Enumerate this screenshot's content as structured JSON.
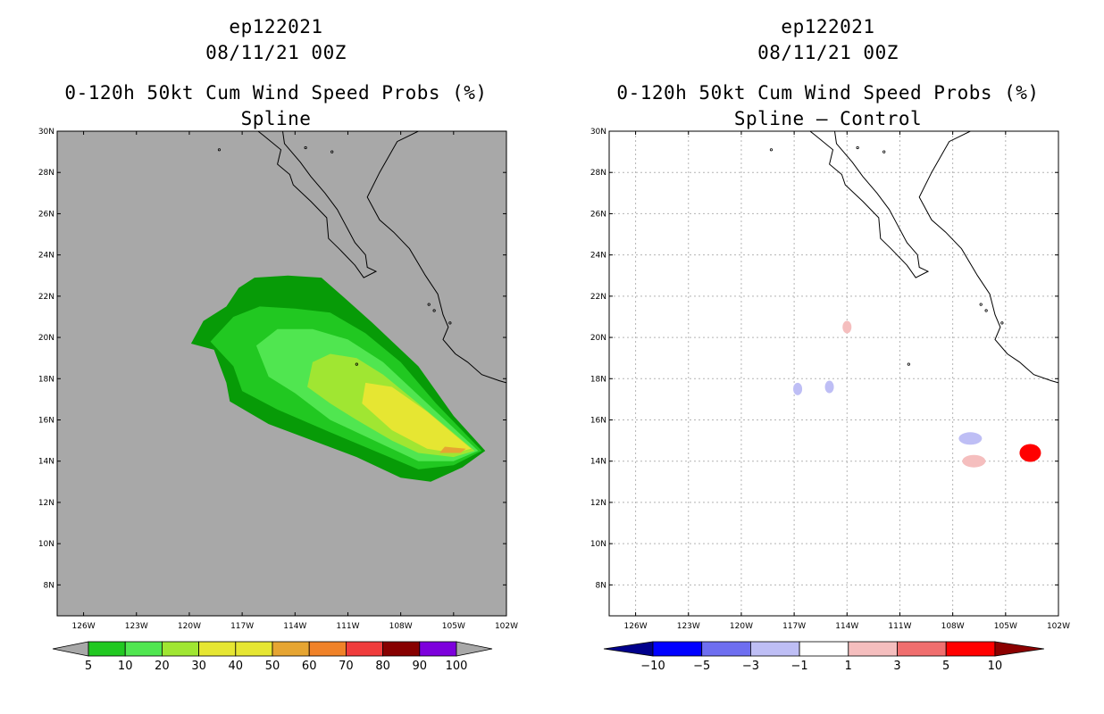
{
  "left_panel": {
    "title_lines": [
      "ep122021",
      "08/11/21 00Z"
    ],
    "subtitle_lines": [
      "0-120h 50kt Cum Wind Speed Probs (%)",
      "Spline"
    ],
    "colors": {
      "background": "#a8a8a8"
    },
    "colorbar": {
      "labels": [
        "5",
        "10",
        "20",
        "30",
        "40",
        "50",
        "60",
        "70",
        "80",
        "90",
        "100"
      ],
      "colors": [
        "#079b07",
        "#21c821",
        "#50e650",
        "#a0e632",
        "#e6e632",
        "#e6e632",
        "#e6a532",
        "#f08228",
        "#f03c3c",
        "#870000",
        "#7d00dc"
      ]
    }
  },
  "right_panel": {
    "title_lines": [
      "ep122021",
      "08/11/21 00Z"
    ],
    "subtitle_lines": [
      "0-120h 50kt Cum Wind Speed Probs (%)",
      "Spline – Control"
    ],
    "colors": {
      "background": "#ffffff"
    },
    "colorbar": {
      "labels": [
        "−10",
        "−5",
        "−3",
        "−1",
        "1",
        "3",
        "5",
        "10"
      ],
      "colors": [
        "#00008c",
        "#0000ff",
        "#6e6ef0",
        "#bebef5",
        "#ffffff",
        "#f5bebe",
        "#f06e6e",
        "#ff0000",
        "#8c0000"
      ]
    }
  },
  "chart_data": [
    {
      "type": "heatmap",
      "title": "ep122021 08/11/21 00Z",
      "subtitle": "0-120h 50kt Cum Wind Speed Probs (%) Spline",
      "lon_range": [
        -127.5,
        -102
      ],
      "lat_range": [
        6.5,
        30
      ],
      "x_ticks": [
        "126W",
        "123W",
        "120W",
        "117W",
        "114W",
        "111W",
        "108W",
        "105W",
        "102W"
      ],
      "y_ticks": [
        "8N",
        "10N",
        "12N",
        "14N",
        "16N",
        "18N",
        "20N",
        "22N",
        "24N",
        "26N",
        "28N",
        "30N"
      ],
      "grid": false,
      "levels": [
        5,
        10,
        20,
        30,
        40,
        50,
        60,
        70,
        80,
        90,
        100
      ],
      "max_value_location": {
        "lon": -104.0,
        "lat": 14.4
      },
      "contours": [
        {
          "level": 5,
          "polygon": [
            [
              -119.9,
              19.7
            ],
            [
              -119.2,
              20.8
            ],
            [
              -117.9,
              21.5
            ],
            [
              -117.2,
              22.4
            ],
            [
              -116.3,
              22.9
            ],
            [
              -114.4,
              23.0
            ],
            [
              -112.5,
              22.9
            ],
            [
              -111.3,
              22.0
            ],
            [
              -109.6,
              20.7
            ],
            [
              -107.0,
              18.6
            ],
            [
              -105.0,
              16.2
            ],
            [
              -103.2,
              14.5
            ],
            [
              -104.5,
              13.7
            ],
            [
              -106.3,
              13.0
            ],
            [
              -108.0,
              13.2
            ],
            [
              -110.5,
              14.2
            ],
            [
              -113.0,
              15.0
            ],
            [
              -115.5,
              15.8
            ],
            [
              -117.7,
              16.9
            ],
            [
              -117.9,
              17.8
            ],
            [
              -118.6,
              19.4
            ]
          ]
        },
        {
          "level": 10,
          "polygon": [
            [
              -118.8,
              19.8
            ],
            [
              -117.5,
              21.0
            ],
            [
              -116.0,
              21.5
            ],
            [
              -114.0,
              21.4
            ],
            [
              -112.0,
              21.2
            ],
            [
              -110.0,
              20.2
            ],
            [
              -108.0,
              18.8
            ],
            [
              -106.0,
              16.8
            ],
            [
              -103.4,
              14.5
            ],
            [
              -105.0,
              13.8
            ],
            [
              -107.0,
              13.6
            ],
            [
              -109.5,
              14.5
            ],
            [
              -112.0,
              15.4
            ],
            [
              -115.0,
              16.5
            ],
            [
              -117.0,
              17.4
            ],
            [
              -117.5,
              18.6
            ]
          ]
        },
        {
          "level": 20,
          "polygon": [
            [
              -116.2,
              19.6
            ],
            [
              -115.0,
              20.4
            ],
            [
              -113.0,
              20.4
            ],
            [
              -111.0,
              19.9
            ],
            [
              -109.0,
              18.8
            ],
            [
              -107.0,
              17.2
            ],
            [
              -103.6,
              14.5
            ],
            [
              -105.0,
              14.0
            ],
            [
              -107.0,
              14.0
            ],
            [
              -109.0,
              14.8
            ],
            [
              -112.0,
              16.0
            ],
            [
              -114.0,
              17.3
            ],
            [
              -115.5,
              18.1
            ]
          ]
        },
        {
          "level": 30,
          "polygon": [
            [
              -113.0,
              18.8
            ],
            [
              -112.0,
              19.2
            ],
            [
              -110.5,
              19.0
            ],
            [
              -109.0,
              18.2
            ],
            [
              -107.3,
              17.0
            ],
            [
              -103.8,
              14.5
            ],
            [
              -105.0,
              14.2
            ],
            [
              -107.0,
              14.4
            ],
            [
              -108.5,
              15.0
            ],
            [
              -110.5,
              16.0
            ],
            [
              -112.0,
              16.8
            ],
            [
              -113.3,
              17.6
            ]
          ]
        },
        {
          "level": 40,
          "polygon": [
            [
              -110.0,
              17.8
            ],
            [
              -108.5,
              17.6
            ],
            [
              -106.5,
              16.4
            ],
            [
              -104.0,
              14.6
            ],
            [
              -105.0,
              14.4
            ],
            [
              -106.5,
              14.6
            ],
            [
              -108.5,
              15.5
            ],
            [
              -110.2,
              16.8
            ]
          ]
        },
        {
          "level": 50,
          "polygon": [
            [
              -107.2,
              15.6
            ],
            [
              -105.5,
              15.2
            ],
            [
              -104.0,
              14.6
            ],
            [
              -105.0,
              14.5
            ],
            [
              -106.5,
              14.8
            ],
            [
              -107.8,
              15.3
            ]
          ]
        },
        {
          "level": 60,
          "polygon": [
            [
              -105.5,
              14.7
            ],
            [
              -104.3,
              14.6
            ],
            [
              -104.6,
              14.4
            ],
            [
              -105.8,
              14.4
            ]
          ]
        }
      ]
    },
    {
      "type": "heatmap",
      "title": "ep122021 08/11/21 00Z",
      "subtitle": "0-120h 50kt Cum Wind Speed Probs (%) Spline – Control",
      "lon_range": [
        -127.5,
        -102
      ],
      "lat_range": [
        6.5,
        30
      ],
      "x_ticks": [
        "126W",
        "123W",
        "120W",
        "117W",
        "114W",
        "111W",
        "108W",
        "105W",
        "102W"
      ],
      "y_ticks": [
        "8N",
        "10N",
        "12N",
        "14N",
        "16N",
        "18N",
        "20N",
        "22N",
        "24N",
        "26N",
        "28N",
        "30N"
      ],
      "grid": true,
      "levels": [
        -10,
        -5,
        -3,
        -1,
        1,
        3,
        5,
        10
      ],
      "features": [
        {
          "value": 2,
          "lon": -114.0,
          "lat": 20.5
        },
        {
          "value": -2,
          "lon": -115.0,
          "lat": 17.6
        },
        {
          "value": -2,
          "lon": -116.8,
          "lat": 17.5
        },
        {
          "value": -2,
          "lon": -107.0,
          "lat": 15.1
        },
        {
          "value": 2,
          "lon": -106.8,
          "lat": 14.0
        },
        {
          "value": 8,
          "lon": -103.6,
          "lat": 14.4
        }
      ]
    }
  ]
}
